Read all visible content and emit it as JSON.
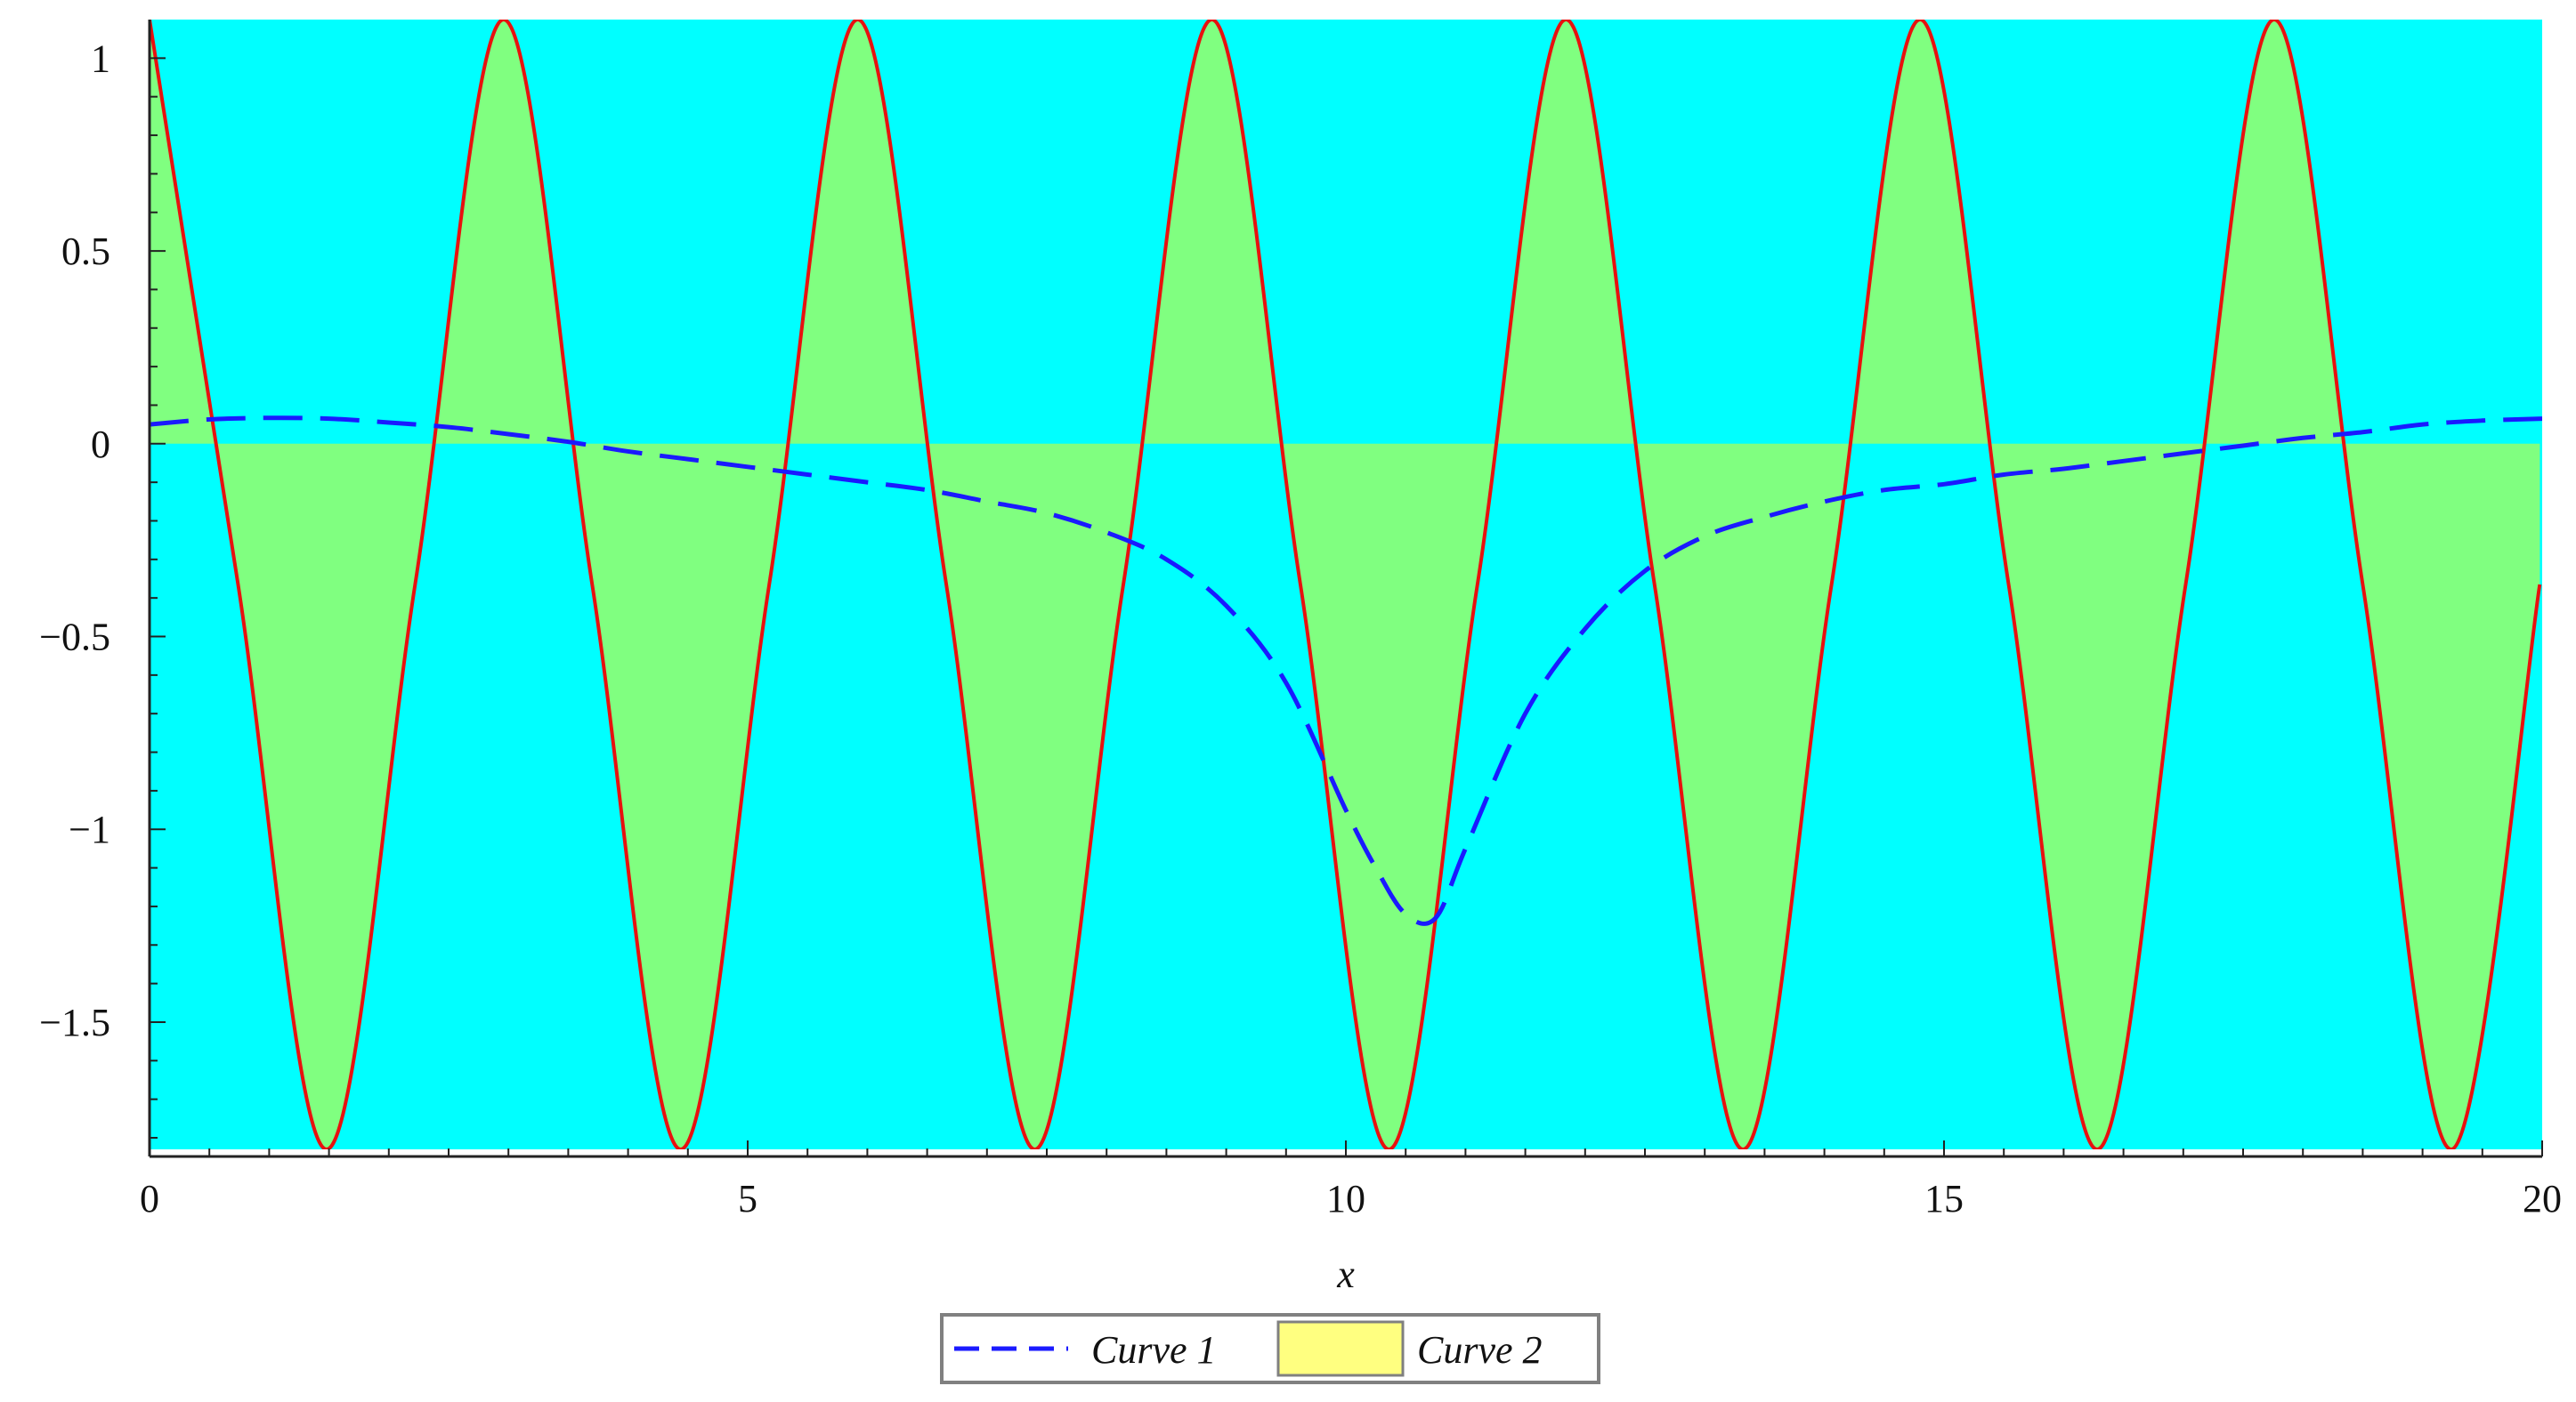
{
  "colors": {
    "background": "#00ffff",
    "fill": "#80ff80",
    "curve2_line": "#e8110f",
    "curve1_line": "#1a1aff",
    "legend_fill_swatch": "#ffff80",
    "axis": "#222222",
    "legend_border": "#808080"
  },
  "chart_data": {
    "type": "line",
    "title": "",
    "xlabel": "x",
    "ylabel": "",
    "xlim": [
      0,
      20
    ],
    "ylim": [
      -1.83,
      1.1
    ],
    "x_ticks": [
      0,
      5,
      10,
      15,
      20
    ],
    "x_tick_labels": [
      "0",
      "5",
      "10",
      "15",
      "20"
    ],
    "y_ticks": [
      1,
      0.5,
      0,
      -0.5,
      -1,
      -1.5
    ],
    "y_tick_labels": [
      "1",
      "0.5",
      "0",
      "−0.5",
      "−1",
      "−1.5"
    ],
    "grid": false,
    "legend_position": "bottom-center",
    "series": [
      {
        "name": "Curve 1",
        "style": "dashed",
        "x": [
          0,
          0.5,
          1,
          1.5,
          2,
          2.5,
          3,
          3.5,
          4,
          4.5,
          5,
          5.5,
          6,
          6.5,
          7,
          7.5,
          8,
          8.5,
          9,
          9.5,
          10,
          10.25,
          10.5,
          10.75,
          11,
          11.5,
          12,
          12.5,
          13,
          13.5,
          14,
          14.5,
          15,
          15.5,
          16,
          16.5,
          17,
          17.5,
          18,
          18.5,
          19,
          19.5,
          20
        ],
        "y": [
          0.05,
          0.063,
          0.067,
          0.065,
          0.055,
          0.043,
          0.025,
          0.005,
          -0.02,
          -0.04,
          -0.06,
          -0.08,
          -0.1,
          -0.12,
          -0.15,
          -0.18,
          -0.23,
          -0.3,
          -0.42,
          -0.62,
          -0.95,
          -1.1,
          -1.22,
          -1.23,
          -1.05,
          -0.7,
          -0.48,
          -0.33,
          -0.24,
          -0.19,
          -0.15,
          -0.12,
          -0.105,
          -0.08,
          -0.065,
          -0.045,
          -0.025,
          -0.005,
          0.015,
          0.03,
          0.05,
          0.06,
          0.065
        ]
      },
      {
        "name": "Curve 2",
        "style": "filled-to-zero",
        "x": [
          0,
          0.74,
          1.48,
          2.22,
          2.96,
          3.7,
          4.44,
          5.18,
          5.92,
          6.66,
          7.4,
          8.14,
          8.88,
          9.62,
          10.36,
          11.1,
          11.84,
          12.58,
          13.32,
          14.06,
          14.8,
          15.54,
          16.28,
          17.02,
          17.76,
          18.5,
          19.24,
          19.98
        ],
        "y": [
          1.1,
          -0.365,
          -1.83,
          -0.365,
          1.1,
          -0.365,
          -1.83,
          -0.365,
          1.1,
          -0.365,
          -1.83,
          -0.365,
          1.1,
          -0.365,
          -1.83,
          -0.365,
          1.1,
          -0.365,
          -1.83,
          -0.365,
          1.1,
          -0.365,
          -1.83,
          -0.365,
          1.1,
          -0.365,
          -1.83,
          -0.365
        ]
      }
    ]
  },
  "legend": {
    "items": [
      {
        "label": "Curve 1"
      },
      {
        "label": "Curve 2"
      }
    ]
  }
}
